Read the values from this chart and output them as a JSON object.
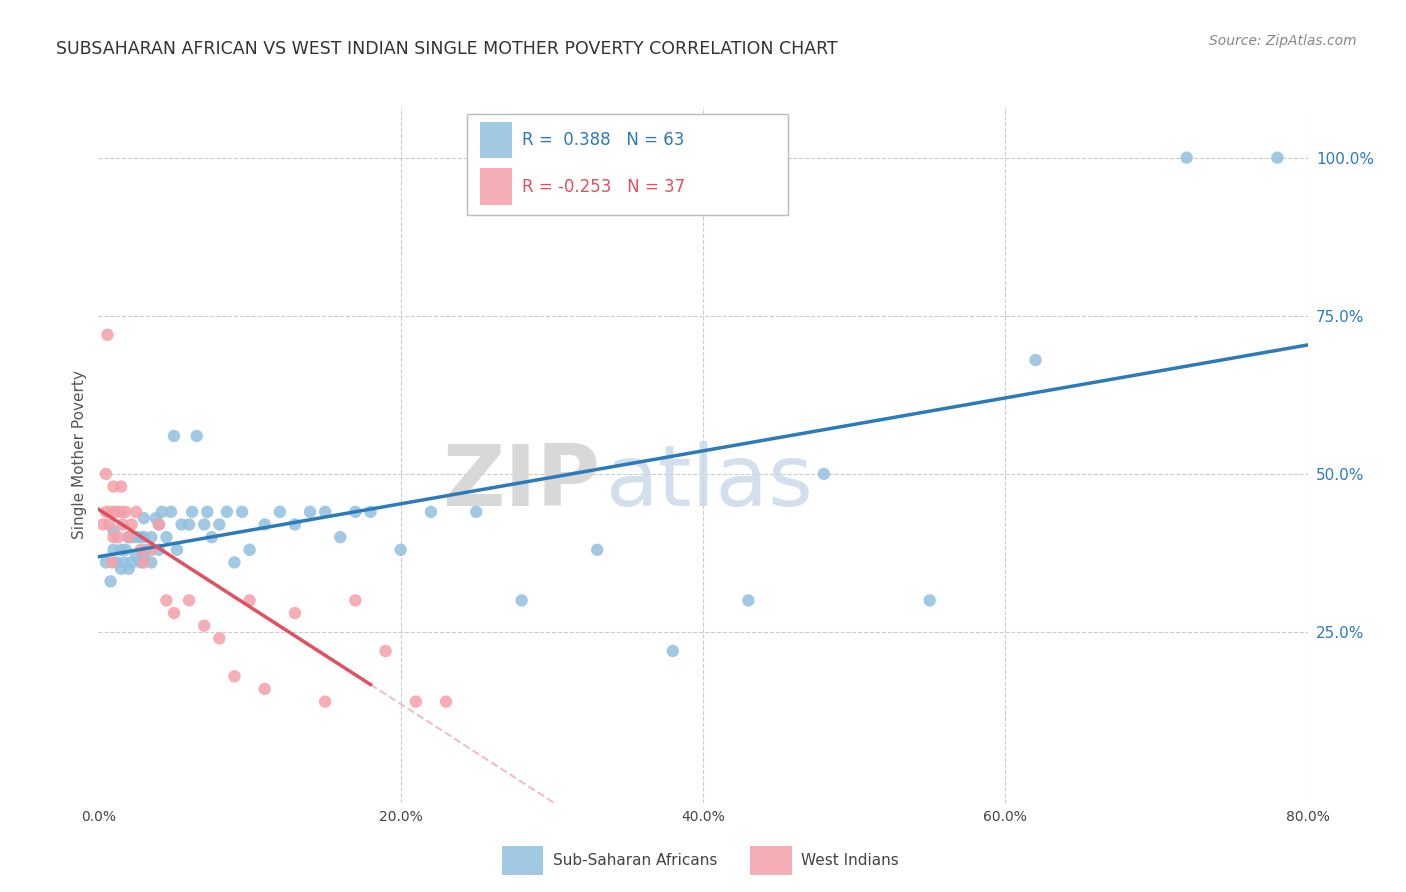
{
  "title": "SUBSAHARAN AFRICAN VS WEST INDIAN SINGLE MOTHER POVERTY CORRELATION CHART",
  "source": "Source: ZipAtlas.com",
  "ylabel": "Single Mother Poverty",
  "ytick_vals": [
    0.25,
    0.5,
    0.75,
    1.0
  ],
  "ytick_labels": [
    "25.0%",
    "50.0%",
    "75.0%",
    "100.0%"
  ],
  "xtick_vals": [
    0.0,
    0.2,
    0.4,
    0.6,
    0.8
  ],
  "xtick_labels": [
    "0.0%",
    "20.0%",
    "40.0%",
    "60.0%",
    "80.0%"
  ],
  "watermark_zip": "ZIP",
  "watermark_atlas": "atlas",
  "title_color": "#333333",
  "source_color": "#888888",
  "grid_color": "#cccccc",
  "blue_color": "#92c0e0",
  "pink_color": "#f4a0a8",
  "blue_line_color": "#2b7bba",
  "pink_line_solid_color": "#e05060",
  "pink_line_dash_color": "#f0c0c8",
  "xlim": [
    0.0,
    0.8
  ],
  "ylim": [
    -0.02,
    1.08
  ],
  "blue_R": 0.388,
  "blue_N": 63,
  "pink_R": -0.253,
  "pink_N": 37,
  "blue_points_x": [
    0.005,
    0.008,
    0.01,
    0.01,
    0.012,
    0.015,
    0.015,
    0.017,
    0.018,
    0.02,
    0.02,
    0.022,
    0.022,
    0.025,
    0.025,
    0.028,
    0.028,
    0.03,
    0.03,
    0.03,
    0.032,
    0.035,
    0.035,
    0.038,
    0.04,
    0.04,
    0.042,
    0.045,
    0.048,
    0.05,
    0.052,
    0.055,
    0.06,
    0.062,
    0.065,
    0.07,
    0.072,
    0.075,
    0.08,
    0.085,
    0.09,
    0.095,
    0.1,
    0.11,
    0.12,
    0.13,
    0.14,
    0.15,
    0.16,
    0.17,
    0.18,
    0.2,
    0.22,
    0.25,
    0.28,
    0.33,
    0.38,
    0.43,
    0.48,
    0.55,
    0.62,
    0.72,
    0.78
  ],
  "blue_points_y": [
    0.36,
    0.33,
    0.38,
    0.41,
    0.36,
    0.35,
    0.38,
    0.36,
    0.38,
    0.35,
    0.4,
    0.36,
    0.4,
    0.37,
    0.4,
    0.36,
    0.4,
    0.37,
    0.4,
    0.43,
    0.38,
    0.36,
    0.4,
    0.43,
    0.38,
    0.42,
    0.44,
    0.4,
    0.44,
    0.56,
    0.38,
    0.42,
    0.42,
    0.44,
    0.56,
    0.42,
    0.44,
    0.4,
    0.42,
    0.44,
    0.36,
    0.44,
    0.38,
    0.42,
    0.44,
    0.42,
    0.44,
    0.44,
    0.4,
    0.44,
    0.44,
    0.38,
    0.44,
    0.44,
    0.3,
    0.38,
    0.22,
    0.3,
    0.5,
    0.3,
    0.68,
    1.0,
    1.0
  ],
  "pink_points_x": [
    0.003,
    0.005,
    0.005,
    0.006,
    0.007,
    0.008,
    0.009,
    0.01,
    0.01,
    0.01,
    0.012,
    0.013,
    0.015,
    0.015,
    0.016,
    0.018,
    0.02,
    0.022,
    0.025,
    0.028,
    0.03,
    0.035,
    0.04,
    0.045,
    0.05,
    0.06,
    0.07,
    0.08,
    0.09,
    0.1,
    0.11,
    0.13,
    0.15,
    0.17,
    0.19,
    0.21,
    0.23
  ],
  "pink_points_y": [
    0.42,
    0.44,
    0.5,
    0.72,
    0.42,
    0.44,
    0.36,
    0.4,
    0.44,
    0.48,
    0.44,
    0.4,
    0.44,
    0.48,
    0.42,
    0.44,
    0.4,
    0.42,
    0.44,
    0.38,
    0.36,
    0.38,
    0.42,
    0.3,
    0.28,
    0.3,
    0.26,
    0.24,
    0.18,
    0.3,
    0.16,
    0.28,
    0.14,
    0.3,
    0.22,
    0.14,
    0.14
  ]
}
